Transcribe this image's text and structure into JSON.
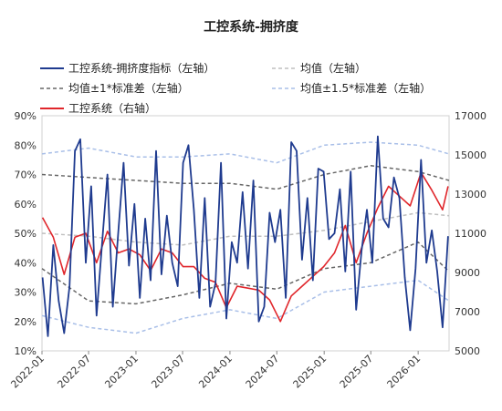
{
  "chart_data": {
    "type": "line",
    "title": "工控系统-拥挤度",
    "xlabel": "",
    "ylabel_left": "",
    "ylabel_right": "",
    "x_ticks": [
      "2022-01",
      "2022-07",
      "2023-01",
      "2023-07",
      "2024-01",
      "2024-07",
      "2025-01",
      "2025-07",
      "2026-01"
    ],
    "x_range": [
      "2022-01",
      "2026-05"
    ],
    "ylim_left": [
      10,
      90
    ],
    "ylim_right": [
      5000,
      17000
    ],
    "y_ticks_left": [
      "10%",
      "20%",
      "30%",
      "40%",
      "50%",
      "60%",
      "70%",
      "80%",
      "90%"
    ],
    "y_ticks_right": [
      "5000",
      "7000",
      "9000",
      "11000",
      "13000",
      "15000",
      "17000"
    ],
    "grid": false,
    "legend_position": "top",
    "series": [
      {
        "name": "工控系统-拥挤度指标（左轴）",
        "axis": "left",
        "color": "#1f3b8f",
        "style": "solid",
        "x": [
          "2022-01-03",
          "2022-01-24",
          "2022-02-14",
          "2022-03-07",
          "2022-03-28",
          "2022-04-18",
          "2022-05-09",
          "2022-05-30",
          "2022-06-20",
          "2022-07-11",
          "2022-08-01",
          "2022-08-22",
          "2022-09-12",
          "2022-10-03",
          "2022-10-24",
          "2022-11-14",
          "2022-12-05",
          "2022-12-26",
          "2023-01-16",
          "2023-02-06",
          "2023-02-27",
          "2023-03-20",
          "2023-04-10",
          "2023-05-01",
          "2023-05-22",
          "2023-06-12",
          "2023-07-03",
          "2023-07-24",
          "2023-08-14",
          "2023-09-04",
          "2023-09-25",
          "2023-10-16",
          "2023-11-06",
          "2023-11-27",
          "2023-12-18",
          "2024-01-08",
          "2024-01-29",
          "2024-02-19",
          "2024-03-11",
          "2024-04-01",
          "2024-04-22",
          "2024-05-13",
          "2024-06-03",
          "2024-06-24",
          "2024-07-15",
          "2024-08-05",
          "2024-08-26",
          "2024-09-16",
          "2024-10-07",
          "2024-10-28",
          "2024-11-18",
          "2024-12-09",
          "2024-12-30",
          "2025-01-20",
          "2025-02-10",
          "2025-03-03",
          "2025-03-24",
          "2025-04-14",
          "2025-05-05",
          "2025-05-26",
          "2025-06-16",
          "2025-07-07",
          "2025-07-28",
          "2025-08-18",
          "2025-09-08",
          "2025-09-29",
          "2025-10-20",
          "2025-11-10",
          "2025-12-01",
          "2025-12-22",
          "2026-01-12",
          "2026-02-02",
          "2026-02-23",
          "2026-03-16",
          "2026-04-06",
          "2026-04-27"
        ],
        "y": [
          35,
          15,
          46,
          27,
          16,
          32,
          78,
          82,
          40,
          66,
          22,
          46,
          70,
          25,
          50,
          74,
          39,
          60,
          28,
          55,
          34,
          78,
          36,
          56,
          40,
          32,
          74,
          80,
          58,
          28,
          62,
          25,
          33,
          74,
          21,
          47,
          40,
          64,
          38,
          68,
          20,
          25,
          57,
          47,
          58,
          28,
          81,
          78,
          41,
          62,
          34,
          72,
          71,
          48,
          50,
          65,
          37,
          71,
          24,
          44,
          58,
          40,
          83,
          55,
          52,
          69,
          62,
          35,
          17,
          38,
          75,
          40,
          51,
          37,
          18,
          49
        ],
        "values": [
          35,
          15,
          46,
          27,
          16,
          32,
          78,
          82,
          40,
          66,
          22,
          46,
          70,
          25,
          50,
          74,
          39,
          60,
          28,
          55,
          34,
          78,
          36,
          56,
          40,
          32,
          74,
          80,
          58,
          28,
          62,
          25,
          33,
          74,
          21,
          47,
          40,
          64,
          38,
          68,
          20,
          25,
          57,
          47,
          58,
          28,
          81,
          78,
          41,
          62,
          34,
          72,
          71,
          48,
          50,
          65,
          37,
          71,
          24,
          44,
          58,
          40,
          83,
          55,
          52,
          69,
          62,
          35,
          17,
          38,
          75,
          40,
          51,
          37,
          18,
          49
        ]
      },
      {
        "name": "均值（左轴）",
        "axis": "left",
        "color": "#bfbfbf",
        "style": "dashed",
        "x": [
          "2022-01",
          "2022-07",
          "2023-01",
          "2023-07",
          "2024-01",
          "2024-07",
          "2025-01",
          "2025-07",
          "2026-01",
          "2026-05"
        ],
        "y": [
          50,
          49,
          47,
          46,
          49,
          49,
          51,
          54,
          57,
          56
        ],
        "values": [
          50,
          49,
          47,
          46,
          49,
          49,
          51,
          54,
          57,
          56
        ]
      },
      {
        "name": "均值±1*标准差（左轴）",
        "axis": "left",
        "color": "#666666",
        "style": "dashed",
        "x": [
          "2022-01",
          "2022-07",
          "2023-01",
          "2023-07",
          "2024-01",
          "2024-07",
          "2025-01",
          "2025-07",
          "2026-01",
          "2026-05"
        ],
        "upper": [
          70,
          69,
          68,
          67,
          67,
          65,
          70,
          73,
          71,
          68
        ],
        "lower": [
          38,
          27,
          26,
          29,
          33,
          31,
          38,
          40,
          47,
          37
        ]
      },
      {
        "name": "均值±1.5*标准差（左轴）",
        "axis": "left",
        "color": "#a9bfe8",
        "style": "dashed",
        "x": [
          "2022-01",
          "2022-07",
          "2023-01",
          "2023-07",
          "2024-01",
          "2024-07",
          "2025-01",
          "2025-07",
          "2026-01",
          "2026-05"
        ],
        "upper": [
          77,
          79,
          76,
          76,
          77,
          74,
          80,
          81,
          80,
          77
        ],
        "lower": [
          22,
          18,
          16,
          21,
          24,
          21,
          30,
          32,
          34,
          27
        ]
      },
      {
        "name": "工控系统（右轴）",
        "axis": "right",
        "color": "#e0262b",
        "style": "solid",
        "x": [
          "2022-01-03",
          "2022-02-14",
          "2022-03-28",
          "2022-05-09",
          "2022-06-20",
          "2022-08-01",
          "2022-09-12",
          "2022-10-24",
          "2022-12-05",
          "2023-01-16",
          "2023-02-27",
          "2023-04-10",
          "2023-05-22",
          "2023-07-03",
          "2023-08-14",
          "2023-09-25",
          "2023-11-06",
          "2023-12-18",
          "2024-01-29",
          "2024-03-11",
          "2024-04-22",
          "2024-06-03",
          "2024-07-15",
          "2024-08-26",
          "2024-10-07",
          "2024-11-18",
          "2024-12-30",
          "2025-02-10",
          "2025-03-24",
          "2025-05-05",
          "2025-06-16",
          "2025-07-28",
          "2025-09-08",
          "2025-10-20",
          "2025-12-01",
          "2026-01-12",
          "2026-02-23",
          "2026-04-06",
          "2026-04-27"
        ],
        "y": [
          11800,
          10800,
          8900,
          10800,
          11000,
          9500,
          11100,
          10000,
          10200,
          9900,
          9100,
          10200,
          10000,
          9300,
          9300,
          8700,
          8500,
          7200,
          8300,
          8200,
          8100,
          7600,
          6500,
          7800,
          8300,
          8800,
          9300,
          10000,
          11400,
          9500,
          11000,
          12300,
          13400,
          12900,
          12400,
          14100,
          13200,
          12200,
          13400
        ],
        "values": [
          11800,
          10800,
          8900,
          10800,
          11000,
          9500,
          11100,
          10000,
          10200,
          9900,
          9100,
          10200,
          10000,
          9300,
          9300,
          8700,
          8500,
          7200,
          8300,
          8200,
          8100,
          7600,
          6500,
          7800,
          8300,
          8800,
          9300,
          10000,
          11400,
          9500,
          11000,
          12300,
          13400,
          12900,
          12400,
          14100,
          13200,
          12200,
          13400
        ]
      }
    ]
  }
}
